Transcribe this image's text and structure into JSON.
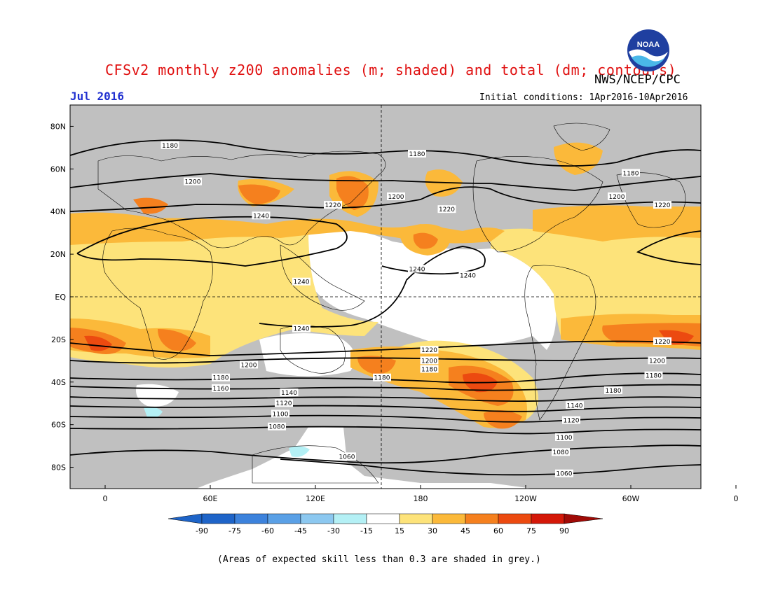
{
  "title": "CFSv2 monthly z200 anomalies (m; shaded) and total (dm; contours)",
  "agency": "NWS/NCEP/CPC",
  "valid_month": "Jul 2016",
  "initial_conditions": "Initial conditions: 1Apr2016-10Apr2016",
  "footnote": "(Areas of expected skill less than 0.3 are shaded in grey.)",
  "logo_text": "NOAA",
  "colors": {
    "grey_low_skill": "#c0c0c0",
    "white_neutral": "#ffffff",
    "pos_15_30": "#fde37a",
    "pos_30_45": "#fbb93a",
    "pos_45_60": "#f5801e",
    "pos_60_75": "#ec4a10",
    "pos_75_90": "#d41808",
    "neg_15_30": "#b4f0f5",
    "neg_30_45": "#8cc8f0",
    "neg_45_60": "#5aa0e6",
    "neg_60_75": "#3c82dc",
    "neg_75_90": "#1e64c8",
    "contour": "#000000"
  },
  "map": {
    "projection": "cylindrical-equidistant",
    "lat_labels": [
      "80N",
      "60N",
      "40N",
      "20N",
      "EQ",
      "20S",
      "40S",
      "60S",
      "80S"
    ],
    "lon_labels": [
      "0",
      "60E",
      "120E",
      "180",
      "120W",
      "60W",
      "0"
    ]
  },
  "contour_labels": [
    {
      "text": "1180",
      "lon": 37,
      "lat": 71
    },
    {
      "text": "1180",
      "lon": 178,
      "lat": 67
    },
    {
      "text": "1180",
      "lon": 300,
      "lat": 58
    },
    {
      "text": "1200",
      "lon": 50,
      "lat": 54
    },
    {
      "text": "1200",
      "lon": 166,
      "lat": 47
    },
    {
      "text": "1200",
      "lon": 292,
      "lat": 47
    },
    {
      "text": "1220",
      "lon": 130,
      "lat": 43
    },
    {
      "text": "1220",
      "lon": 195,
      "lat": 41
    },
    {
      "text": "1220",
      "lon": 318,
      "lat": 43
    },
    {
      "text": "1240",
      "lon": 89,
      "lat": 38
    },
    {
      "text": "1240",
      "lon": 178,
      "lat": 13
    },
    {
      "text": "1240",
      "lon": 207,
      "lat": 10
    },
    {
      "text": "1240",
      "lon": 112,
      "lat": 7
    },
    {
      "text": "1240",
      "lon": 112,
      "lat": -15
    },
    {
      "text": "1220",
      "lon": 185,
      "lat": -25
    },
    {
      "text": "1220",
      "lon": 318,
      "lat": -21
    },
    {
      "text": "1200",
      "lon": 185,
      "lat": -30
    },
    {
      "text": "1200",
      "lon": 82,
      "lat": -32
    },
    {
      "text": "1200",
      "lon": 315,
      "lat": -30
    },
    {
      "text": "1180",
      "lon": 66,
      "lat": -38
    },
    {
      "text": "1180",
      "lon": 185,
      "lat": -34
    },
    {
      "text": "1180",
      "lon": 158,
      "lat": -38
    },
    {
      "text": "1180",
      "lon": 313,
      "lat": -37
    },
    {
      "text": "1180",
      "lon": 290,
      "lat": -44
    },
    {
      "text": "1160",
      "lon": 66,
      "lat": -43
    },
    {
      "text": "1140",
      "lon": 105,
      "lat": -45
    },
    {
      "text": "1140",
      "lon": 268,
      "lat": -51
    },
    {
      "text": "1120",
      "lon": 102,
      "lat": -50
    },
    {
      "text": "1120",
      "lon": 266,
      "lat": -58
    },
    {
      "text": "1100",
      "lon": 100,
      "lat": -55
    },
    {
      "text": "1100",
      "lon": 262,
      "lat": -66
    },
    {
      "text": "1080",
      "lon": 98,
      "lat": -61
    },
    {
      "text": "1080",
      "lon": 260,
      "lat": -73
    },
    {
      "text": "1060",
      "lon": 138,
      "lat": -75
    },
    {
      "text": "1060",
      "lon": 262,
      "lat": -83
    }
  ],
  "colorbar": {
    "tick_labels": [
      "-90",
      "-75",
      "-60",
      "-45",
      "-30",
      "-15",
      "15",
      "30",
      "45",
      "60",
      "75",
      "90"
    ]
  }
}
